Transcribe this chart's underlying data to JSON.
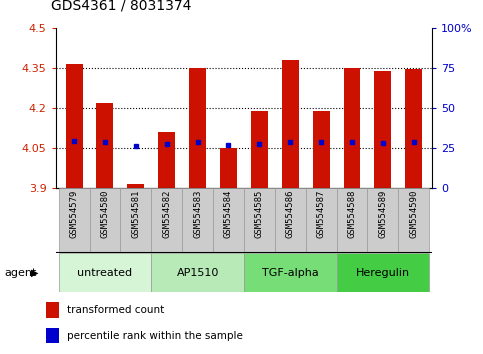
{
  "title": "GDS4361 / 8031374",
  "samples": [
    "GSM554579",
    "GSM554580",
    "GSM554581",
    "GSM554582",
    "GSM554583",
    "GSM554584",
    "GSM554585",
    "GSM554586",
    "GSM554587",
    "GSM554588",
    "GSM554589",
    "GSM554590"
  ],
  "red_values": [
    4.365,
    4.218,
    3.915,
    4.108,
    4.352,
    4.05,
    4.188,
    4.38,
    4.188,
    4.352,
    4.338,
    4.345
  ],
  "blue_values": [
    4.075,
    4.073,
    4.058,
    4.063,
    4.073,
    4.062,
    4.065,
    4.073,
    4.072,
    4.072,
    4.068,
    4.072
  ],
  "ylim": [
    3.9,
    4.5
  ],
  "yticks": [
    3.9,
    4.05,
    4.2,
    4.35,
    4.5
  ],
  "ytick_labels": [
    "3.9",
    "4.05",
    "4.2",
    "4.35",
    "4.5"
  ],
  "right_yticks": [
    0,
    25,
    50,
    75,
    100
  ],
  "right_ytick_labels": [
    "0",
    "25",
    "50",
    "75",
    "100%"
  ],
  "gridlines": [
    4.05,
    4.2,
    4.35
  ],
  "agent_groups": [
    {
      "label": "untreated",
      "start": 0,
      "end": 3
    },
    {
      "label": "AP1510",
      "start": 3,
      "end": 6
    },
    {
      "label": "TGF-alpha",
      "start": 6,
      "end": 9
    },
    {
      "label": "Heregulin",
      "start": 9,
      "end": 12
    }
  ],
  "agent_colors": [
    "#d6f5d6",
    "#b8eab8",
    "#77dd77",
    "#44cc44"
  ],
  "bar_color": "#cc1100",
  "dot_color": "#0000cc",
  "bar_width": 0.55,
  "tick_label_color_left": "#cc2200",
  "tick_label_color_right": "#0000cc",
  "legend_items": [
    {
      "color": "#cc1100",
      "label": "transformed count"
    },
    {
      "color": "#0000cc",
      "label": "percentile rank within the sample"
    }
  ],
  "sample_bg_color": "#cccccc",
  "sample_border_color": "#999999"
}
